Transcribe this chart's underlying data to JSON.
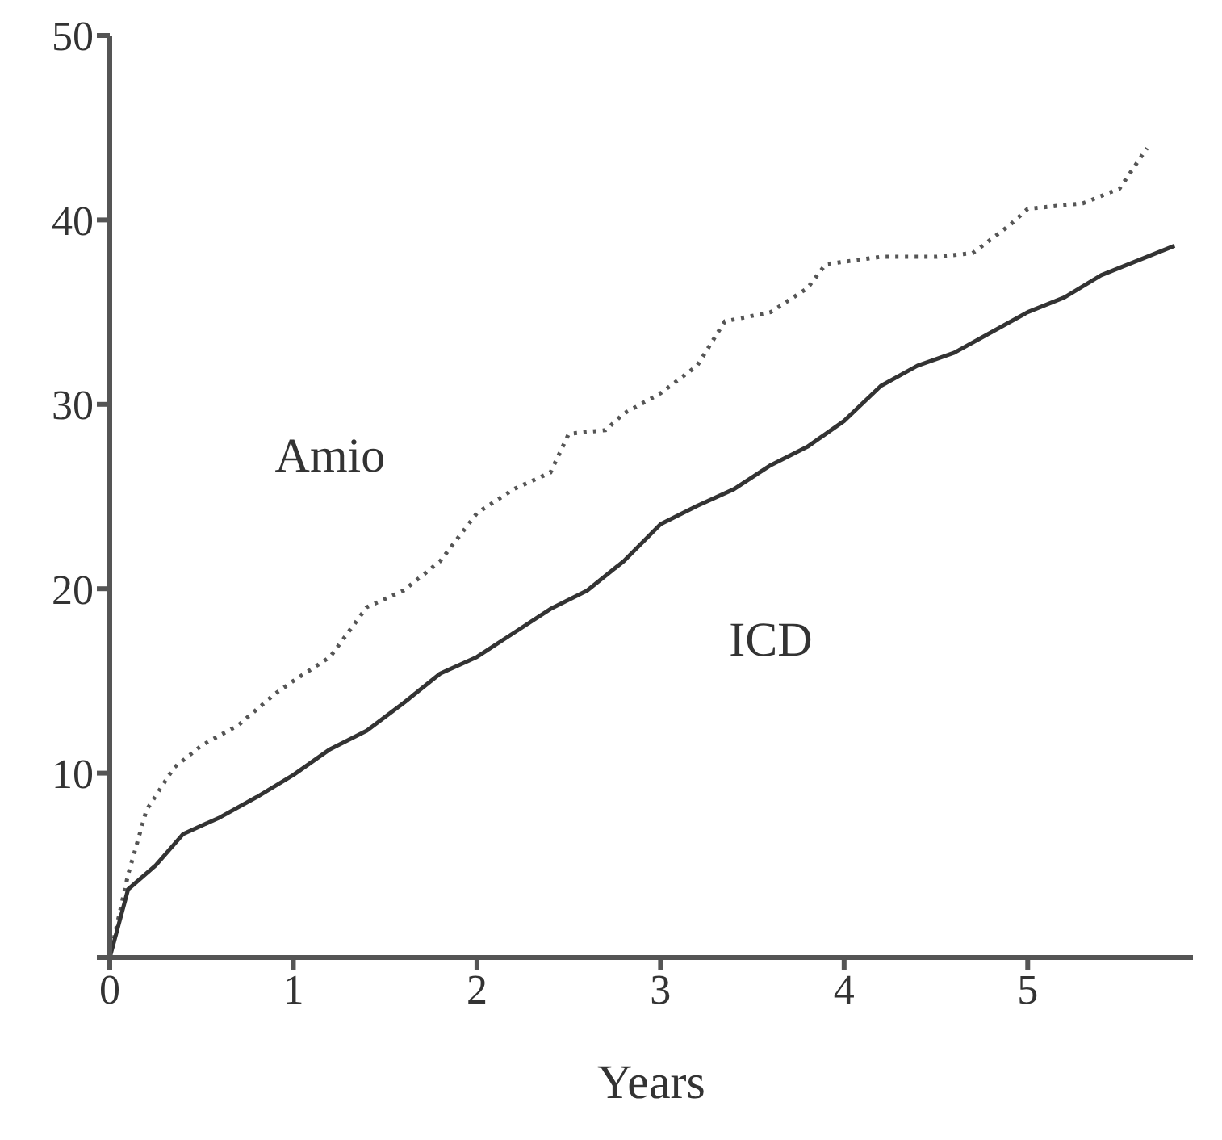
{
  "chart_data": {
    "type": "line",
    "xlabel": "Years",
    "xlim": [
      0,
      5.9
    ],
    "xticks": [
      0,
      1,
      2,
      3,
      4,
      5
    ],
    "ylim": [
      0,
      50
    ],
    "yticks": [
      {
        "value": 0,
        "label": null
      },
      10,
      20,
      30,
      40,
      50
    ],
    "grid": false,
    "legend": false,
    "marker": "none",
    "series": [
      {
        "name": "Amio",
        "color": "#555555",
        "line_style": "dotted",
        "x": [
          0,
          0.1,
          0.2,
          0.35,
          0.5,
          0.7,
          0.9,
          1.0,
          1.2,
          1.4,
          1.6,
          1.8,
          2.0,
          2.2,
          2.4,
          2.5,
          2.7,
          2.8,
          3.0,
          3.2,
          3.35,
          3.6,
          3.8,
          3.9,
          4.2,
          4.5,
          4.7,
          4.9,
          5.0,
          5.3,
          5.5,
          5.65
        ],
        "values": [
          0,
          4.5,
          8,
          10.3,
          11.5,
          12.6,
          14.3,
          15,
          16.3,
          19,
          19.9,
          21.5,
          24.1,
          25.4,
          26.3,
          28.4,
          28.6,
          29.5,
          30.6,
          32.1,
          34.5,
          35,
          36.3,
          37.6,
          38,
          38,
          38.2,
          39.7,
          40.6,
          40.9,
          41.7,
          43.9
        ]
      },
      {
        "name": "ICD",
        "color": "#333333",
        "line_style": "solid",
        "x": [
          0,
          0.1,
          0.25,
          0.4,
          0.6,
          0.8,
          1.0,
          1.2,
          1.4,
          1.6,
          1.8,
          2.0,
          2.2,
          2.4,
          2.6,
          2.8,
          3.0,
          3.2,
          3.4,
          3.6,
          3.8,
          4.0,
          4.2,
          4.4,
          4.6,
          4.8,
          5.0,
          5.2,
          5.4,
          5.6,
          5.8
        ],
        "values": [
          0,
          3.7,
          5,
          6.7,
          7.6,
          8.7,
          9.9,
          11.3,
          12.3,
          13.8,
          15.4,
          16.3,
          17.6,
          18.9,
          19.9,
          21.5,
          23.5,
          24.5,
          25.4,
          26.7,
          27.7,
          29.1,
          31,
          32.1,
          32.8,
          33.9,
          35,
          35.8,
          37,
          37.8,
          38.6
        ]
      }
    ]
  }
}
